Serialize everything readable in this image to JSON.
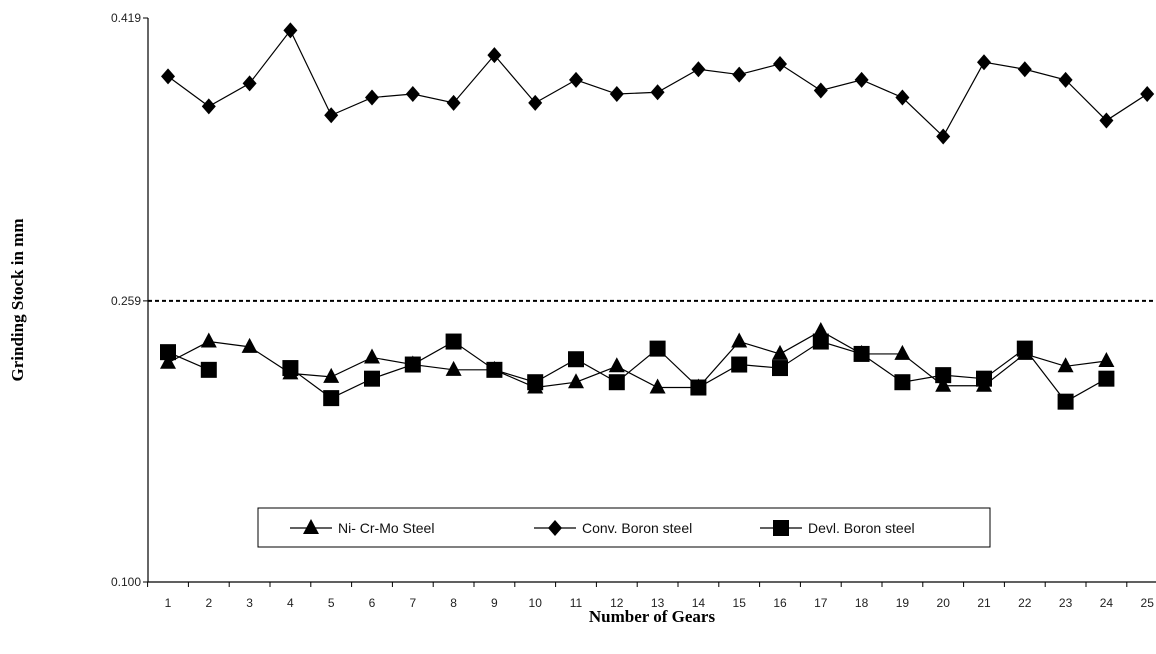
{
  "chart_data": {
    "type": "line",
    "title": "",
    "xlabel": "Number of Gears",
    "ylabel": "Grinding Stock in mm",
    "categories": [
      "1",
      "2",
      "3",
      "4",
      "5",
      "6",
      "7",
      "8",
      "9",
      "10",
      "11",
      "12",
      "13",
      "14",
      "15",
      "16",
      "17",
      "18",
      "19",
      "20",
      "21",
      "22",
      "23",
      "24",
      "25"
    ],
    "ylim": [
      0.1,
      0.419
    ],
    "yticks": [
      "0.419",
      "0.259",
      "0.100"
    ],
    "reference_line": {
      "value": 0.259,
      "style": "dashed"
    },
    "grid": false,
    "legend_position": "bottom-center",
    "series": [
      {
        "name": "Ni- Cr-Mo Steel",
        "marker": "triangle",
        "values": [
          0.224,
          0.236,
          0.233,
          0.218,
          0.216,
          0.227,
          0.223,
          0.22,
          0.22,
          0.21,
          0.213,
          0.222,
          0.21,
          0.21,
          0.236,
          0.229,
          0.242,
          0.229,
          0.229,
          0.211,
          0.211,
          0.229,
          0.222,
          0.225,
          null
        ]
      },
      {
        "name": "Conv. Boron steel",
        "marker": "diamond",
        "values": [
          0.386,
          0.369,
          0.382,
          0.412,
          0.364,
          0.374,
          0.376,
          0.371,
          0.398,
          0.371,
          0.384,
          0.376,
          0.377,
          0.39,
          0.387,
          0.393,
          0.378,
          0.384,
          0.374,
          0.352,
          0.394,
          0.39,
          0.384,
          0.361,
          0.376
        ]
      },
      {
        "name": "Devl. Boron steel",
        "marker": "square",
        "values": [
          0.23,
          0.22,
          null,
          0.221,
          0.204,
          0.215,
          0.223,
          0.236,
          0.22,
          0.213,
          0.226,
          0.213,
          0.232,
          0.21,
          0.223,
          0.221,
          0.236,
          0.229,
          0.213,
          0.217,
          0.215,
          0.232,
          0.202,
          0.215,
          null
        ]
      }
    ]
  }
}
